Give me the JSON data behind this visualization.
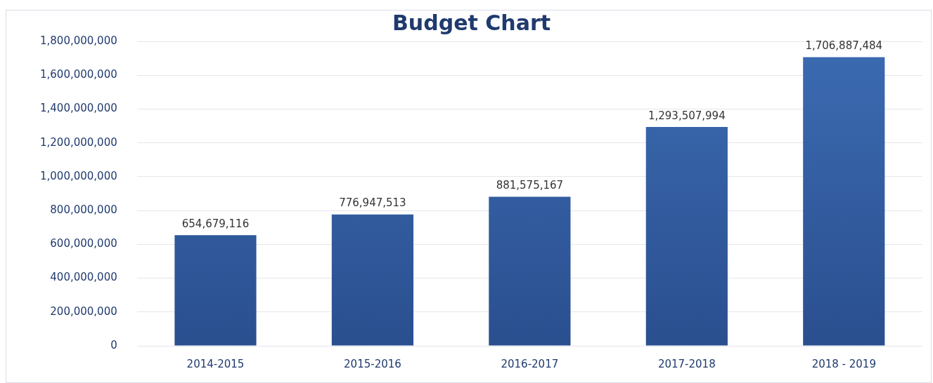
{
  "chart_data": {
    "type": "bar",
    "title": "Budget Chart",
    "categories": [
      "2014-2015",
      "2015-2016",
      "2016-2017",
      "2017-2018",
      "2018 - 2019"
    ],
    "values": [
      654679116,
      776947513,
      881575167,
      1293507994,
      1706887484
    ],
    "color": "#3c6bb2",
    "ylim": [
      0,
      1800000000
    ],
    "yticks": [
      {
        "value": 0,
        "label": "0"
      },
      {
        "value": 200000000,
        "label": "200,000,000"
      },
      {
        "value": 400000000,
        "label": "400,000,000"
      },
      {
        "value": 600000000,
        "label": "600,000,000"
      },
      {
        "value": 800000000,
        "label": "800,000,000"
      },
      {
        "value": 1000000000,
        "label": "1,000,000,000"
      },
      {
        "value": 1200000000,
        "label": "1,200,000,000"
      },
      {
        "value": 1400000000,
        "label": "1,400,000,000"
      },
      {
        "value": 1600000000,
        "label": "1,600,000,000"
      },
      {
        "value": 1800000000,
        "label": "1,800,000,000"
      }
    ],
    "value_labels": [
      "654,679,116",
      "776,947,513",
      "881,575,167",
      "1,293,507,994",
      "1,706,887,484"
    ],
    "grid": "y"
  }
}
